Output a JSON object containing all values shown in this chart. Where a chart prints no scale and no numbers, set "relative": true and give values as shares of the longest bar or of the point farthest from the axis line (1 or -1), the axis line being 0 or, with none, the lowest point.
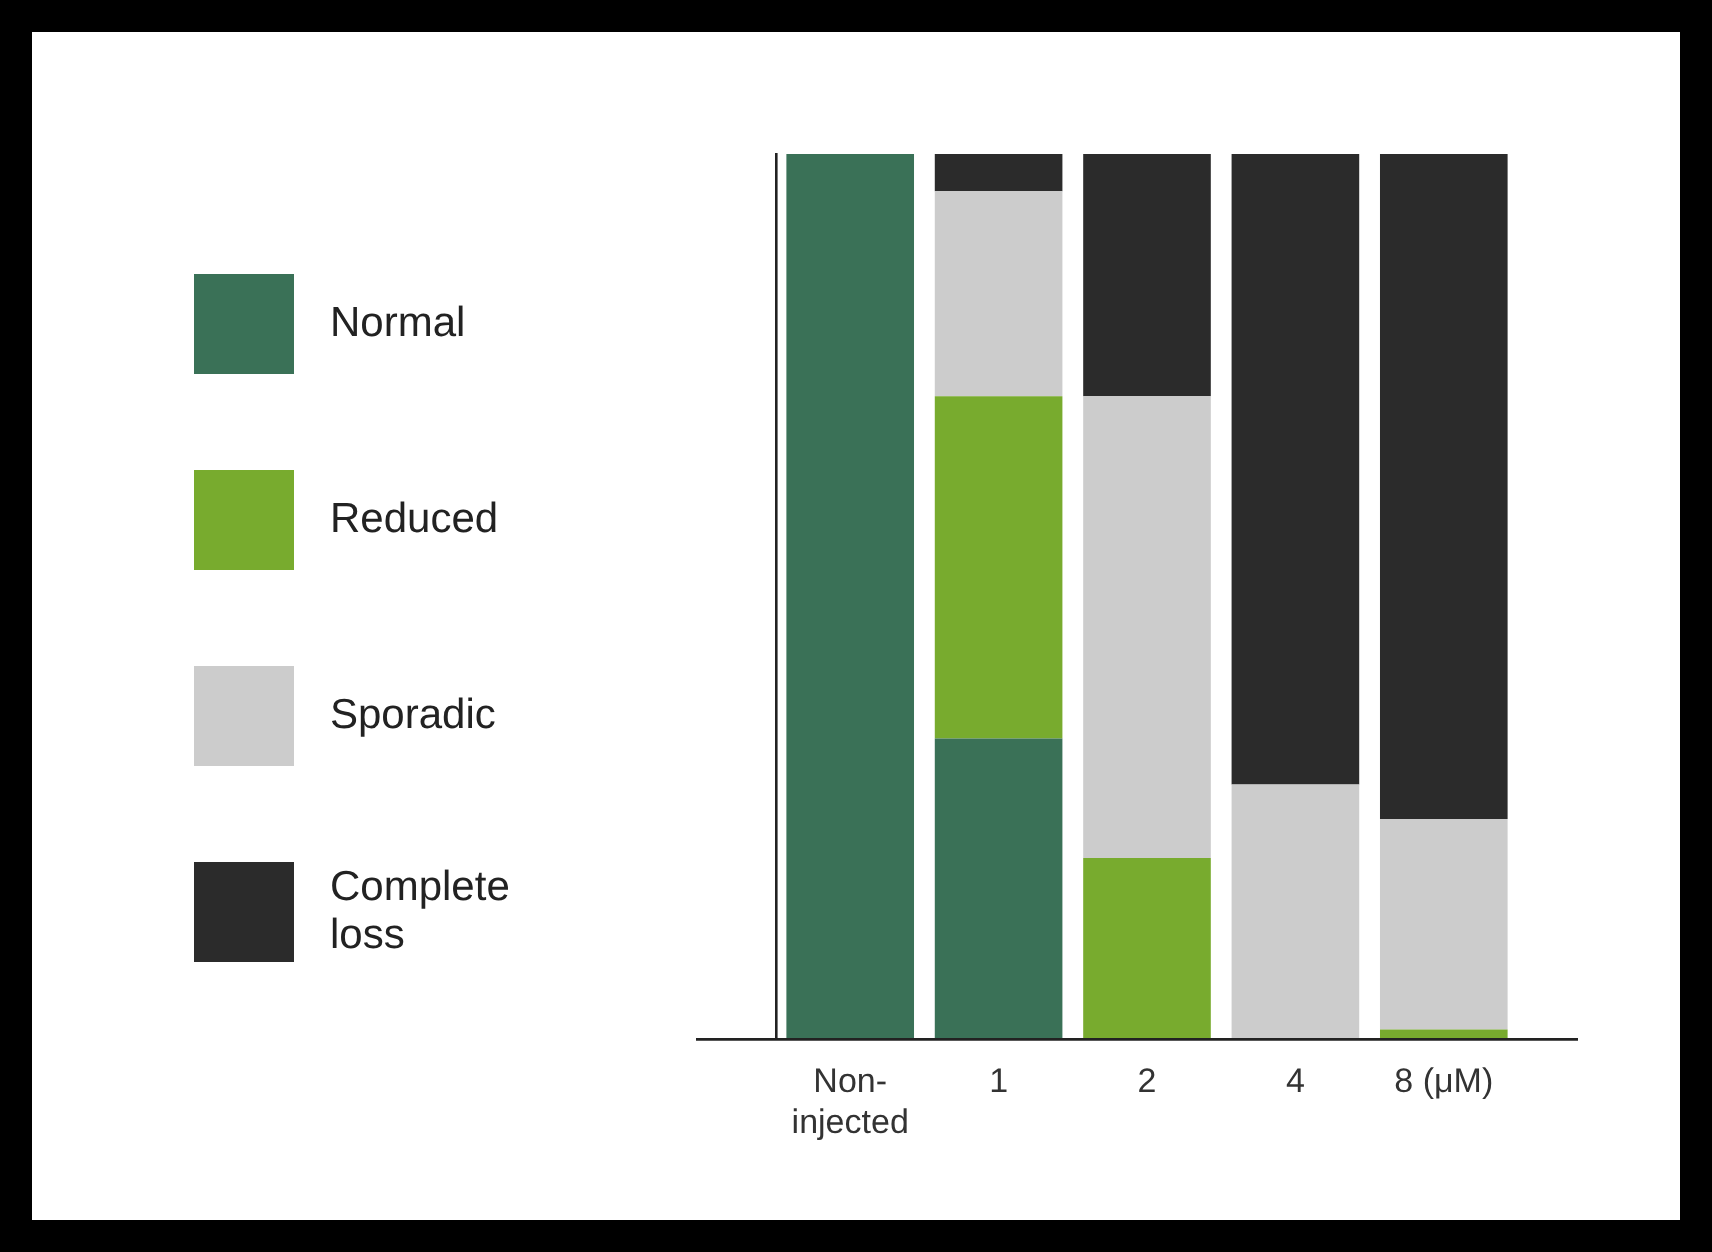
{
  "chart_data": {
    "type": "bar",
    "stacked": true,
    "relative": true,
    "legend": "left",
    "categories": [
      "Non-injected",
      "1",
      "2",
      "4",
      "8 (μM)"
    ],
    "series": [
      {
        "name": "Normal",
        "color": "#3a7157",
        "values": [
          1,
          0.339,
          0,
          0,
          0
        ]
      },
      {
        "name": "Reduced",
        "color": "#78ab2e",
        "values": [
          0,
          0.387,
          0.204,
          0,
          0.01
        ]
      },
      {
        "name": "Sporadic",
        "color": "#cccccc",
        "values": [
          0,
          0.232,
          0.522,
          0.287,
          0.238
        ]
      },
      {
        "name": "Complete loss",
        "color": "#2b2b2b",
        "values": [
          0,
          0.042,
          0.274,
          0.713,
          0.752
        ]
      }
    ]
  }
}
